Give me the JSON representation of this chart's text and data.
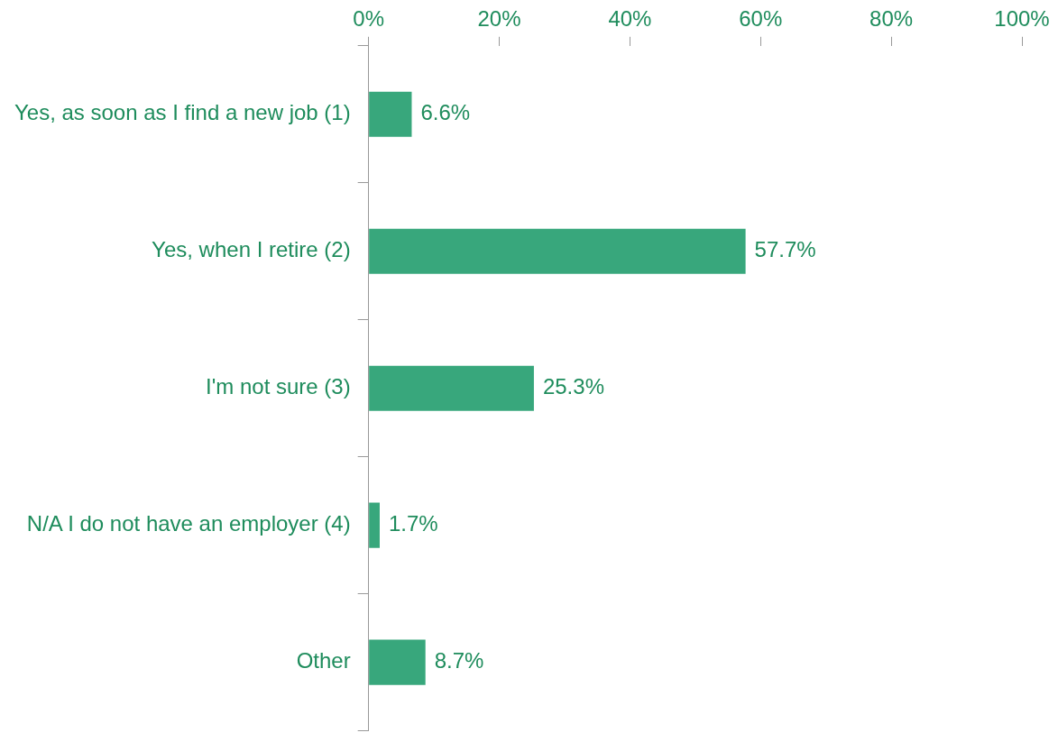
{
  "chart_data": {
    "type": "bar",
    "orientation": "horizontal",
    "categories": [
      "Yes, as soon as I find a new job (1)",
      "Yes, when I retire (2)",
      "I'm not sure (3)",
      "N/A I do not have an employer (4)",
      "Other"
    ],
    "values": [
      6.6,
      57.7,
      25.3,
      1.7,
      8.7
    ],
    "value_labels": [
      "6.6%",
      "57.7%",
      "25.3%",
      "1.7%",
      "8.7%"
    ],
    "color": "#38a77c",
    "xlim": [
      0,
      100
    ],
    "xticks": [
      {
        "value": 0,
        "label": "0%"
      },
      {
        "value": 20,
        "label": "20%"
      },
      {
        "value": 40,
        "label": "40%"
      },
      {
        "value": 60,
        "label": "60%"
      },
      {
        "value": 80,
        "label": "80%"
      },
      {
        "value": 100,
        "label": "100%"
      }
    ],
    "grid": false,
    "legend": false
  }
}
